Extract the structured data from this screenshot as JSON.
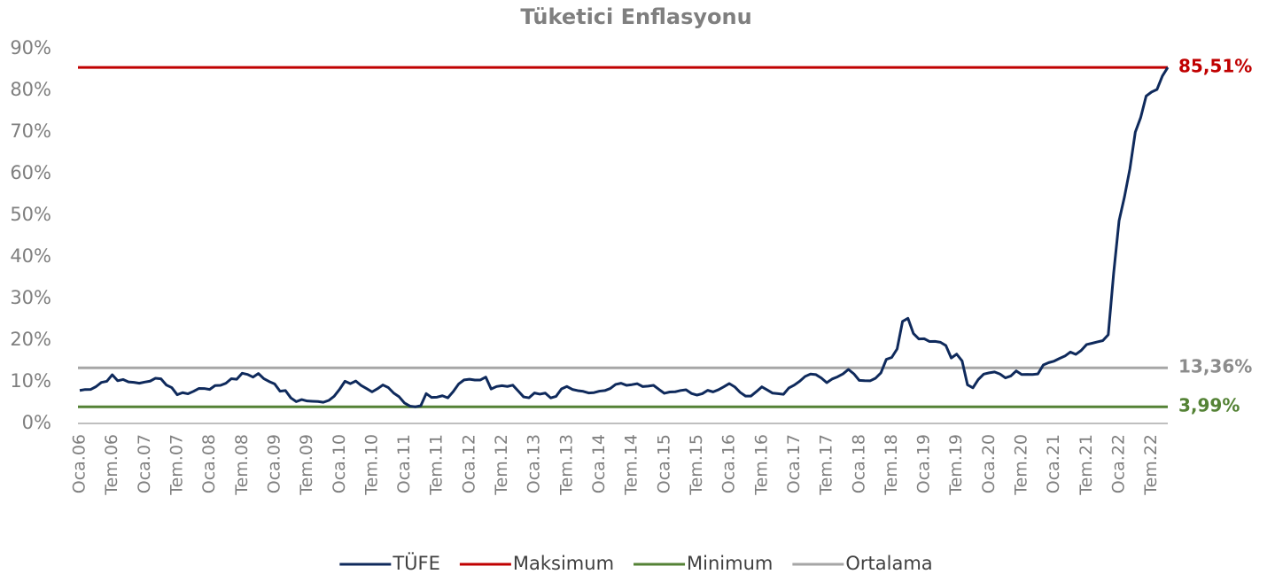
{
  "chart_data": {
    "type": "line",
    "title": "Tüketici Enflasyonu",
    "categories": [
      "Oca.06",
      null,
      null,
      null,
      null,
      null,
      "Tem.06",
      null,
      null,
      null,
      null,
      null,
      "Oca.07",
      null,
      null,
      null,
      null,
      null,
      "Tem.07",
      null,
      null,
      null,
      null,
      null,
      "Oca.08",
      null,
      null,
      null,
      null,
      null,
      "Tem.08",
      null,
      null,
      null,
      null,
      null,
      "Oca.09",
      null,
      null,
      null,
      null,
      null,
      "Tem.09",
      null,
      null,
      null,
      null,
      null,
      "Oca.10",
      null,
      null,
      null,
      null,
      null,
      "Tem.10",
      null,
      null,
      null,
      null,
      null,
      "Oca.11",
      null,
      null,
      null,
      null,
      null,
      "Tem.11",
      null,
      null,
      null,
      null,
      null,
      "Oca.12",
      null,
      null,
      null,
      null,
      null,
      "Tem.12",
      null,
      null,
      null,
      null,
      null,
      "Oca.13",
      null,
      null,
      null,
      null,
      null,
      "Tem.13",
      null,
      null,
      null,
      null,
      null,
      "Oca.14",
      null,
      null,
      null,
      null,
      null,
      "Tem.14",
      null,
      null,
      null,
      null,
      null,
      "Oca.15",
      null,
      null,
      null,
      null,
      null,
      "Tem.15",
      null,
      null,
      null,
      null,
      null,
      "Oca.16",
      null,
      null,
      null,
      null,
      null,
      "Tem.16",
      null,
      null,
      null,
      null,
      null,
      "Oca.17",
      null,
      null,
      null,
      null,
      null,
      "Tem.17",
      null,
      null,
      null,
      null,
      null,
      "Oca.18",
      null,
      null,
      null,
      null,
      null,
      "Tem.18",
      null,
      null,
      null,
      null,
      null,
      "Oca.19",
      null,
      null,
      null,
      null,
      null,
      "Tem.19",
      null,
      null,
      null,
      null,
      null,
      "Oca.20",
      null,
      null,
      null,
      null,
      null,
      "Tem.20",
      null,
      null,
      null,
      null,
      null,
      "Oca.21",
      null,
      null,
      null,
      null,
      null,
      "Tem.21",
      null,
      null,
      null,
      null,
      null,
      "Oca.22",
      null,
      null,
      null,
      null,
      null,
      "Tem.22",
      null,
      null,
      null
    ],
    "series": [
      {
        "name": "TÜFE",
        "color": "#0f2a5c",
        "values": [
          7.93,
          8.15,
          8.16,
          8.83,
          9.86,
          10.12,
          11.69,
          10.26,
          10.55,
          9.98,
          9.86,
          9.65,
          9.93,
          10.16,
          10.86,
          10.72,
          9.23,
          8.6,
          6.9,
          7.39,
          7.12,
          7.7,
          8.4,
          8.39,
          8.17,
          9.1,
          9.15,
          9.66,
          10.74,
          10.61,
          12.06,
          11.77,
          11.13,
          11.99,
          10.76,
          10.06,
          9.5,
          7.73,
          7.89,
          6.13,
          5.24,
          5.73,
          5.39,
          5.33,
          5.27,
          5.08,
          5.53,
          6.53,
          8.19,
          10.13,
          9.56,
          10.19,
          9.1,
          8.37,
          7.58,
          8.33,
          9.24,
          8.62,
          7.29,
          6.4,
          4.9,
          4.16,
          3.99,
          4.26,
          7.17,
          6.24,
          6.31,
          6.65,
          6.15,
          7.66,
          9.48,
          10.45,
          10.61,
          10.43,
          10.43,
          11.14,
          8.28,
          8.87,
          9.07,
          8.88,
          9.19,
          7.8,
          6.37,
          6.16,
          7.31,
          7.03,
          7.29,
          6.13,
          6.51,
          8.3,
          8.88,
          8.17,
          7.88,
          7.71,
          7.32,
          7.4,
          7.75,
          7.89,
          8.39,
          9.38,
          9.66,
          9.16,
          9.32,
          9.54,
          8.86,
          8.96,
          9.15,
          8.17,
          7.24,
          7.55,
          7.61,
          7.91,
          8.09,
          7.2,
          6.81,
          7.14,
          7.95,
          7.58,
          8.1,
          8.81,
          9.58,
          8.78,
          7.46,
          6.57,
          6.58,
          7.64,
          8.79,
          8.05,
          7.28,
          7.16,
          7.0,
          8.53,
          9.22,
          10.13,
          11.29,
          11.87,
          11.72,
          10.9,
          9.79,
          10.68,
          11.2,
          11.9,
          12.98,
          11.92,
          10.35,
          10.26,
          10.23,
          10.85,
          12.15,
          15.39,
          15.85,
          17.9,
          24.52,
          25.24,
          21.62,
          20.3,
          20.35,
          19.67,
          19.71,
          19.5,
          18.71,
          15.72,
          16.65,
          15.01,
          9.26,
          8.55,
          10.56,
          11.84,
          12.15,
          12.37,
          11.86,
          10.94,
          11.39,
          12.62,
          11.76,
          11.77,
          11.75,
          11.89,
          14.03,
          14.6,
          14.97,
          15.61,
          16.19,
          17.14,
          16.59,
          17.53,
          18.95,
          19.25,
          19.58,
          19.89,
          21.31,
          36.08,
          48.69,
          54.44,
          61.14,
          69.97,
          73.5,
          78.62,
          79.6,
          80.21,
          83.45,
          85.51
        ]
      }
    ],
    "reference_lines": [
      {
        "name": "Maksimum",
        "color": "#c00000",
        "value": 85.51,
        "value_label": "85,51%"
      },
      {
        "name": "Minimum",
        "color": "#548235",
        "value": 3.99,
        "value_label": "3,99%"
      },
      {
        "name": "Ortalama",
        "color": "#a6a6a6",
        "value": 13.36,
        "value_label": "13,36%"
      }
    ],
    "ylim": [
      0,
      90
    ],
    "yticks": [
      {
        "value": 0,
        "label": "0%"
      },
      {
        "value": 10,
        "label": "10%"
      },
      {
        "value": 20,
        "label": "20%"
      },
      {
        "value": 30,
        "label": "30%"
      },
      {
        "value": 40,
        "label": "40%"
      },
      {
        "value": 50,
        "label": "50%"
      },
      {
        "value": 60,
        "label": "60%"
      },
      {
        "value": 70,
        "label": "70%"
      },
      {
        "value": 80,
        "label": "80%"
      },
      {
        "value": 90,
        "label": "90%"
      }
    ],
    "grid": false,
    "legend": "bottom"
  }
}
